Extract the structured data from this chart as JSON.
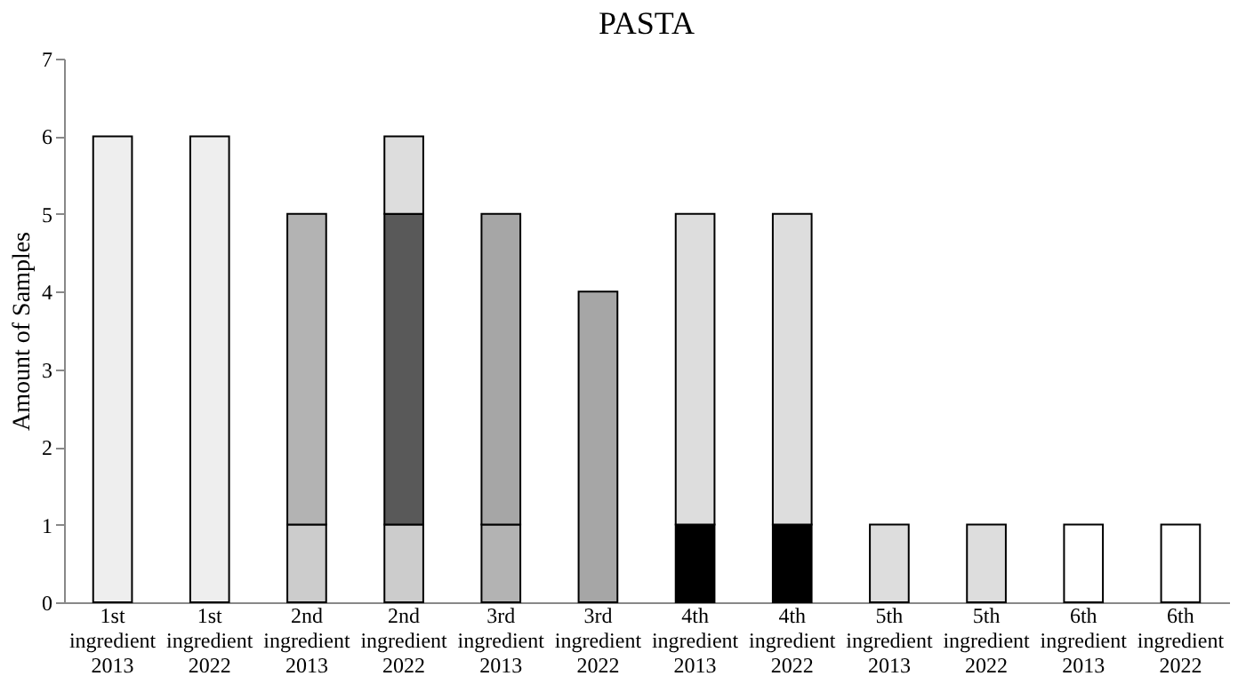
{
  "chart_data": {
    "type": "bar",
    "title": "PASTA",
    "ylabel": "Amount of Samples",
    "categories": [
      "1st ingredient 2013",
      "1st ingredient 2022",
      "2nd ingredient 2013",
      "2nd ingredient 2022",
      "3rd ingredient 2013",
      "3rd ingredient 2022",
      "4th ingredient 2013",
      "4th ingredient 2022",
      "5th ingredient 2013",
      "5th ingredient 2022",
      "6th ingredient 2013",
      "6th ingredient 2022"
    ],
    "stacked": true,
    "series": [
      {
        "color": "#000000",
        "values": [
          null,
          null,
          null,
          null,
          null,
          null,
          1,
          1,
          null,
          null,
          null,
          null
        ]
      },
      {
        "color": "#cccccc",
        "values": [
          null,
          null,
          1,
          1,
          null,
          null,
          null,
          null,
          null,
          null,
          null,
          null
        ]
      },
      {
        "color": "#b3b3b3",
        "values": [
          null,
          null,
          4,
          null,
          1,
          null,
          null,
          null,
          null,
          null,
          null,
          null
        ]
      },
      {
        "color": "#eeeeee",
        "values": [
          6,
          6,
          null,
          null,
          null,
          null,
          null,
          null,
          null,
          null,
          null,
          null
        ]
      },
      {
        "color": "#595959",
        "values": [
          null,
          null,
          null,
          4,
          null,
          null,
          null,
          null,
          null,
          null,
          null,
          null
        ]
      },
      {
        "color": "#a6a6a6",
        "values": [
          null,
          null,
          null,
          null,
          4,
          4,
          null,
          null,
          null,
          null,
          null,
          null
        ]
      },
      {
        "color": "#dddddd",
        "values": [
          null,
          null,
          null,
          1,
          null,
          null,
          4,
          4,
          1,
          1,
          null,
          null
        ]
      },
      {
        "color": "#ffffff",
        "values": [
          null,
          null,
          null,
          null,
          null,
          null,
          null,
          null,
          null,
          null,
          1,
          1
        ]
      }
    ],
    "ylim": [
      0,
      7
    ],
    "yticks": [
      0,
      1,
      2,
      3,
      4,
      5,
      6,
      7
    ],
    "grid": false,
    "legend": false
  }
}
